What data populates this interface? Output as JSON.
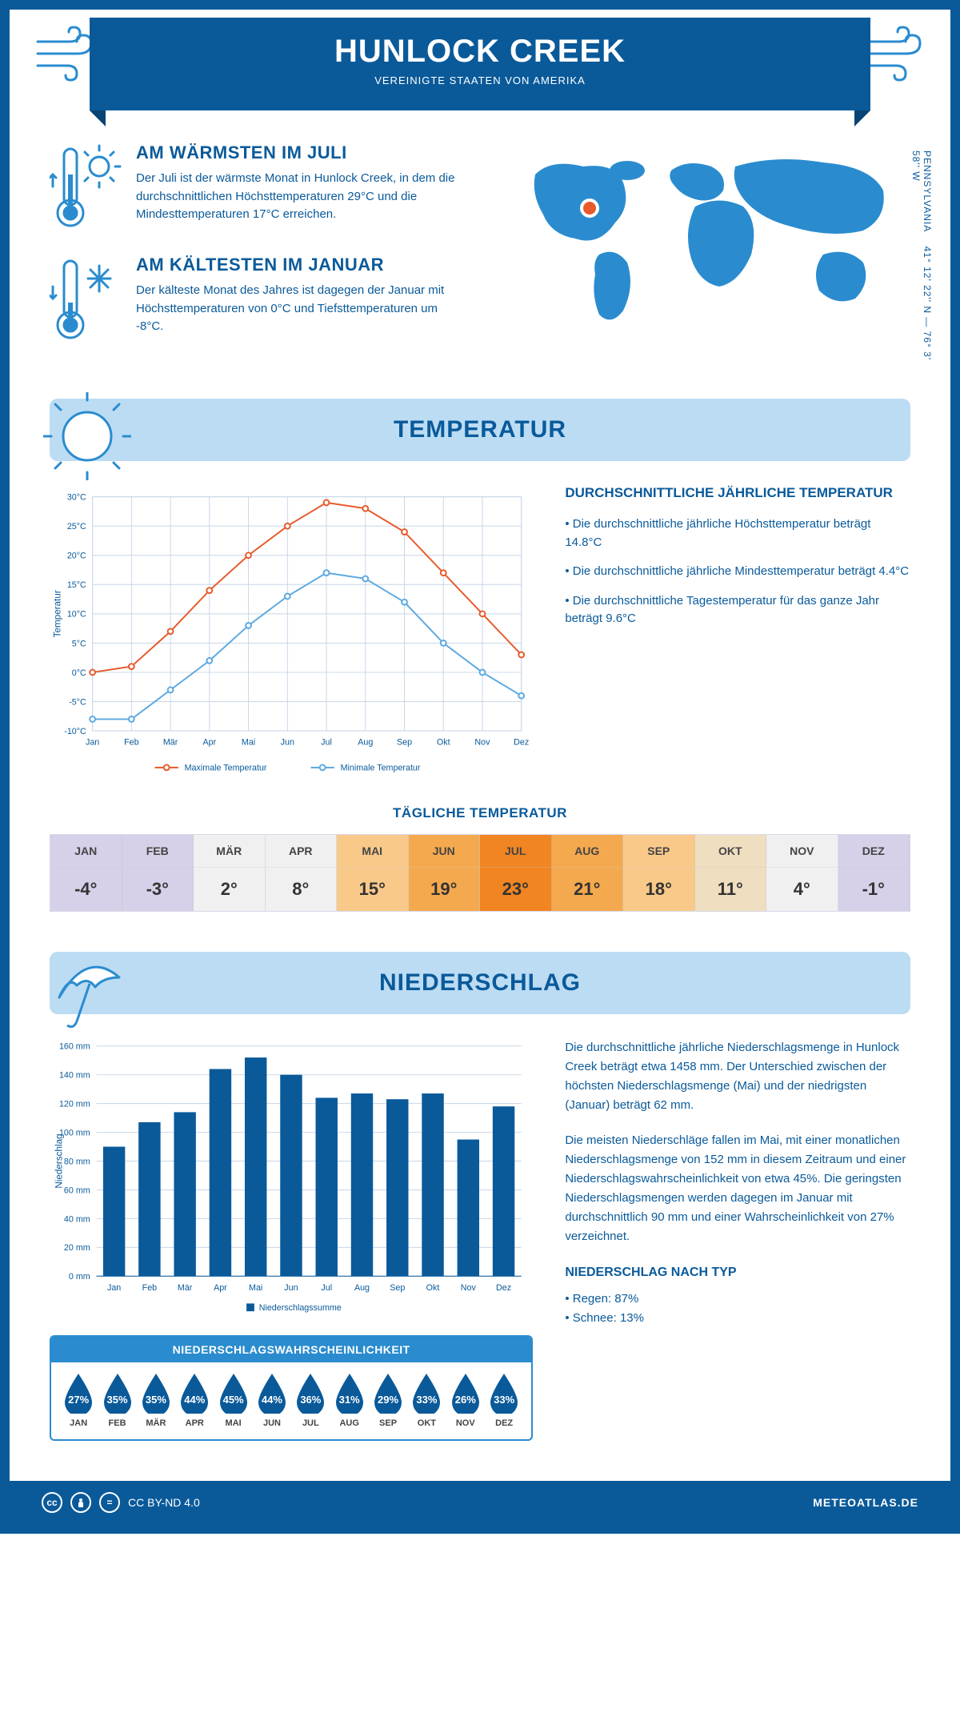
{
  "header": {
    "title": "HUNLOCK CREEK",
    "subtitle": "VEREINIGTE STAATEN VON AMERIKA"
  },
  "coords": {
    "lat": "41° 12' 22'' N",
    "lon": "76° 3' 58'' W",
    "region": "PENNSYLVANIA"
  },
  "facts": {
    "warmest": {
      "title": "AM WÄRMSTEN IM JULI",
      "text": "Der Juli ist der wärmste Monat in Hunlock Creek, in dem die durchschnittlichen Höchsttemperaturen 29°C und die Mindesttemperaturen 17°C erreichen."
    },
    "coldest": {
      "title": "AM KÄLTESTEN IM JANUAR",
      "text": "Der kälteste Monat des Jahres ist dagegen der Januar mit Höchsttemperaturen von 0°C und Tiefsttemperaturen um -8°C."
    }
  },
  "sections": {
    "temperature": "TEMPERATUR",
    "precipitation": "NIEDERSCHLAG"
  },
  "months": [
    "Jan",
    "Feb",
    "Mär",
    "Apr",
    "Mai",
    "Jun",
    "Jul",
    "Aug",
    "Sep",
    "Okt",
    "Nov",
    "Dez"
  ],
  "months_upper": [
    "JAN",
    "FEB",
    "MÄR",
    "APR",
    "MAI",
    "JUN",
    "JUL",
    "AUG",
    "SEP",
    "OKT",
    "NOV",
    "DEZ"
  ],
  "temp_chart": {
    "type": "line",
    "ylabel": "Temperatur",
    "ylim": [
      -10,
      30
    ],
    "ytick_step": 5,
    "grid_color": "#c8d6e8",
    "max_series": {
      "label": "Maximale Temperatur",
      "color": "#e8592b",
      "values": [
        0,
        1,
        7,
        14,
        20,
        25,
        29,
        28,
        24,
        17,
        10,
        3
      ]
    },
    "min_series": {
      "label": "Minimale Temperatur",
      "color": "#5aa8e0",
      "values": [
        -8,
        -8,
        -3,
        2,
        8,
        13,
        17,
        16,
        12,
        5,
        0,
        -4
      ]
    }
  },
  "temp_info": {
    "title": "DURCHSCHNITTLICHE JÄHRLICHE TEMPERATUR",
    "items": [
      "Die durchschnittliche jährliche Höchsttemperatur beträgt 14.8°C",
      "Die durchschnittliche jährliche Mindesttemperatur beträgt 4.4°C",
      "Die durchschnittliche Tagestemperatur für das ganze Jahr beträgt 9.6°C"
    ]
  },
  "daily_temp": {
    "title": "TÄGLICHE TEMPERATUR",
    "values": [
      "-4°",
      "-3°",
      "2°",
      "8°",
      "15°",
      "19°",
      "23°",
      "21°",
      "18°",
      "11°",
      "4°",
      "-1°"
    ],
    "cell_colors": [
      "#d6d0e8",
      "#d6d0e8",
      "#f0f0f0",
      "#f0f0f0",
      "#f9c98a",
      "#f5a94e",
      "#f08522",
      "#f5a94e",
      "#f9c98a",
      "#f0dec0",
      "#f0f0f0",
      "#d6d0e8"
    ]
  },
  "precip_chart": {
    "type": "bar",
    "ylabel": "Niederschlag",
    "ylim": [
      0,
      160
    ],
    "ytick_step": 20,
    "bar_color": "#0a5a9a",
    "grid_color": "#c8d6e8",
    "legend": "Niederschlagssumme",
    "values": [
      90,
      107,
      114,
      144,
      152,
      140,
      124,
      127,
      123,
      127,
      95,
      118
    ]
  },
  "precip_text": {
    "p1": "Die durchschnittliche jährliche Niederschlagsmenge in Hunlock Creek beträgt etwa 1458 mm. Der Unterschied zwischen der höchsten Niederschlagsmenge (Mai) und der niedrigsten (Januar) beträgt 62 mm.",
    "p2": "Die meisten Niederschläge fallen im Mai, mit einer monatlichen Niederschlagsmenge von 152 mm in diesem Zeitraum und einer Niederschlagswahrscheinlichkeit von etwa 45%. Die geringsten Niederschlagsmengen werden dagegen im Januar mit durchschnittlich 90 mm und einer Wahrscheinlichkeit von 27% verzeichnet."
  },
  "precip_prob": {
    "title": "NIEDERSCHLAGSWAHRSCHEINLICHKEIT",
    "values": [
      "27%",
      "35%",
      "35%",
      "44%",
      "45%",
      "44%",
      "36%",
      "31%",
      "29%",
      "33%",
      "26%",
      "33%"
    ],
    "drop_color": "#0a5a9a"
  },
  "precip_type": {
    "title": "NIEDERSCHLAG NACH TYP",
    "items": [
      "Regen: 87%",
      "Schnee: 13%"
    ]
  },
  "footer": {
    "license": "CC BY-ND 4.0",
    "site": "METEOATLAS.DE"
  },
  "colors": {
    "primary": "#0a5a9a",
    "band": "#bcdcf4",
    "accent": "#2a8ccf"
  }
}
